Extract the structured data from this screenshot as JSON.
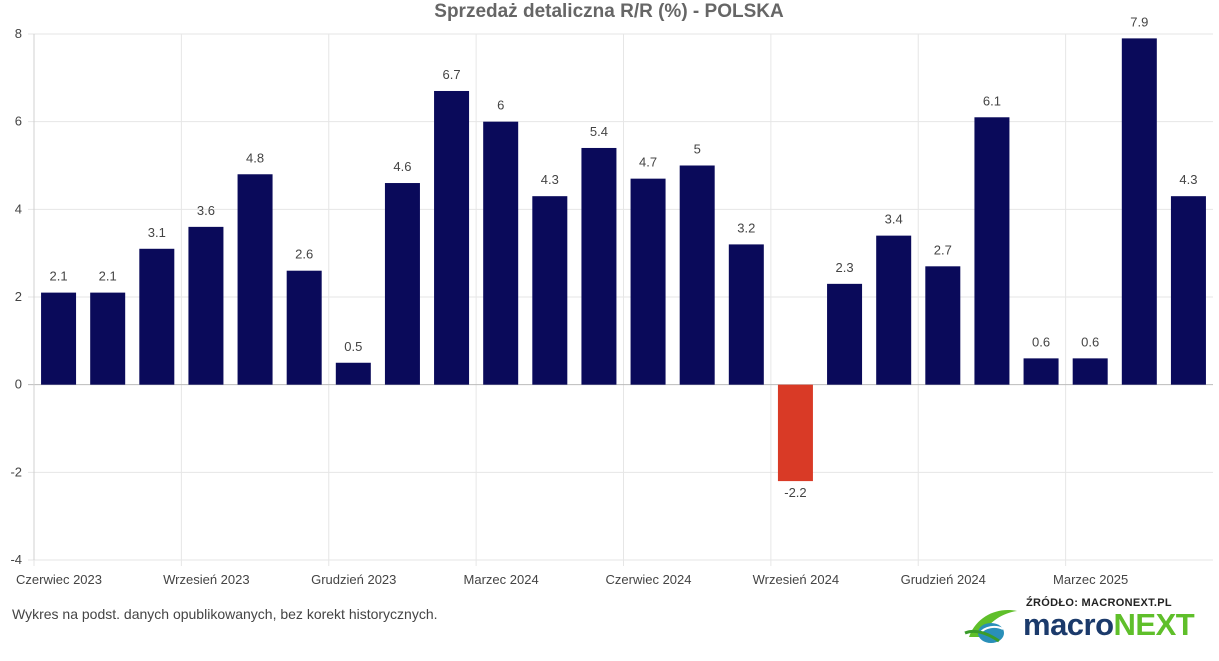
{
  "chart_data": {
    "type": "bar",
    "title": "Sprzedaż detaliczna R/R (%) - POLSKA",
    "xlabel": "",
    "ylabel": "",
    "ylim": [
      -4,
      8
    ],
    "y_ticks": [
      -4,
      -2,
      0,
      2,
      4,
      6,
      8
    ],
    "y_tick_labels": [
      "-4",
      "-2",
      "0",
      "2",
      "4",
      "6",
      "8"
    ],
    "x_tick_labels": [
      "Czerwiec 2023",
      "Wrzesień 2023",
      "Grudzień 2023",
      "Marzec 2024",
      "Czerwiec 2024",
      "Wrzesień 2024",
      "Grudzień 2024",
      "Marzec 2025"
    ],
    "x_tick_indices": [
      0,
      3,
      6,
      9,
      12,
      15,
      18,
      21
    ],
    "grid": true,
    "positive_color": "#0a0a5a",
    "negative_color": "#d93a26",
    "values": [
      2.1,
      2.1,
      3.1,
      3.6,
      4.8,
      2.6,
      0.5,
      4.6,
      6.7,
      6,
      4.3,
      5.4,
      4.7,
      5,
      3.2,
      -2.2,
      2.3,
      3.4,
      2.7,
      6.1,
      0.6,
      0.6,
      7.9,
      4.3
    ],
    "data_labels": [
      "2.1",
      "2.1",
      "3.1",
      "3.6",
      "4.8",
      "2.6",
      "0.5",
      "4.6",
      "6.7",
      "6",
      "4.3",
      "5.4",
      "4.7",
      "5",
      "3.2",
      "-2.2",
      "2.3",
      "3.4",
      "2.7",
      "6.1",
      "0.6",
      "0.6",
      "7.9",
      "4.3"
    ]
  },
  "footnote": "Wykres na podst. danych opublikowanych, bez korekt historycznych.",
  "logo": {
    "source_label": "ŹRÓDŁO: MACRONEXT.PL",
    "word_part1": "macro",
    "word_part2": "NEXT",
    "color_dark": "#1b3a6b",
    "color_green": "#5fbf2a"
  }
}
